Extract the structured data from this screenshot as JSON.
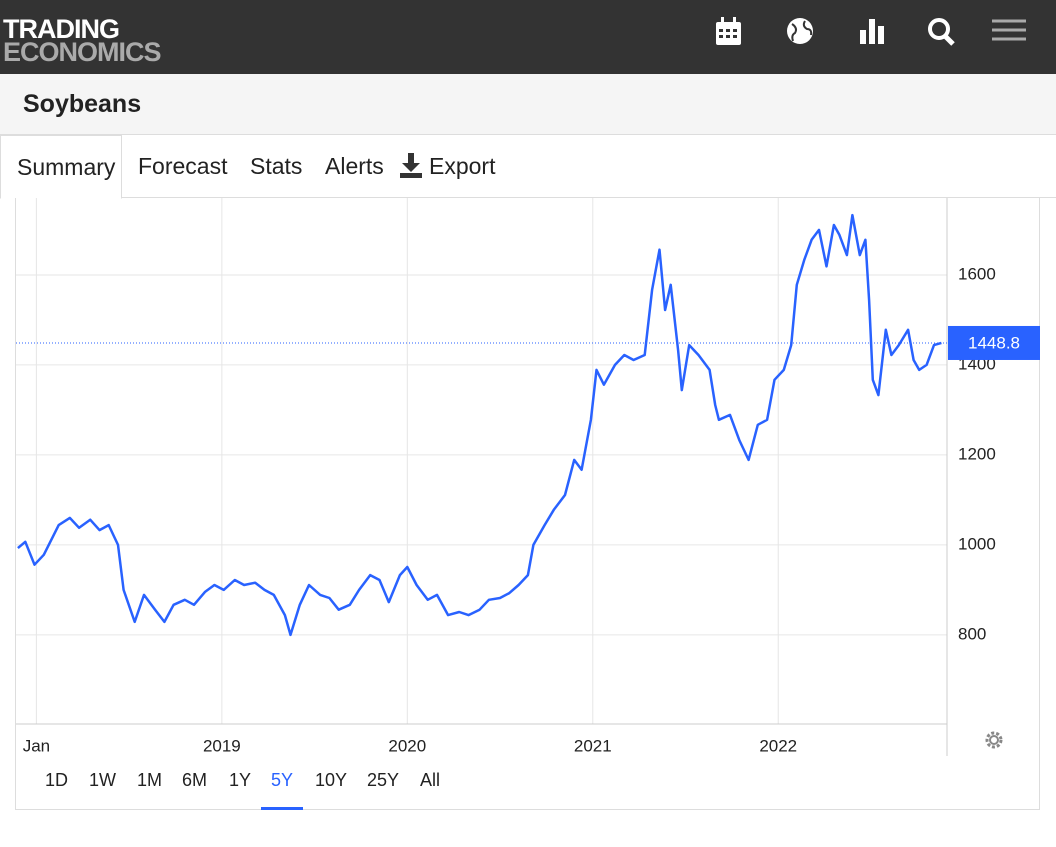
{
  "header": {
    "logo_line1": "TRADING",
    "logo_line2": "ECONOMICS"
  },
  "page_title": "Soybeans",
  "tabs": [
    "Summary",
    "Forecast",
    "Stats",
    "Alerts",
    "Export"
  ],
  "chart_data": {
    "type": "line",
    "color": "#2962ff",
    "grid": true,
    "x": [
      2017.9,
      2017.94,
      2017.99,
      2018.04,
      2018.12,
      2018.18,
      2018.23,
      2018.29,
      2018.34,
      2018.39,
      2018.44,
      2018.47,
      2018.53,
      2018.58,
      2018.64,
      2018.69,
      2018.74,
      2018.8,
      2018.85,
      2018.91,
      2018.96,
      2019.01,
      2019.07,
      2019.12,
      2019.18,
      2019.23,
      2019.28,
      2019.34,
      2019.37,
      2019.42,
      2019.47,
      2019.53,
      2019.58,
      2019.63,
      2019.69,
      2019.74,
      2019.8,
      2019.85,
      2019.9,
      2019.96,
      2020.0,
      2020.05,
      2020.11,
      2020.16,
      2020.22,
      2020.28,
      2020.33,
      2020.39,
      2020.44,
      2020.5,
      2020.55,
      2020.6,
      2020.65,
      2020.68,
      2020.74,
      2020.79,
      2020.85,
      2020.9,
      2020.94,
      2020.99,
      2021.02,
      2021.06,
      2021.12,
      2021.17,
      2021.22,
      2021.28,
      2021.32,
      2021.36,
      2021.39,
      2021.42,
      2021.46,
      2021.48,
      2021.52,
      2021.57,
      2021.63,
      2021.66,
      2021.68,
      2021.74,
      2021.79,
      2021.84,
      2021.89,
      2021.94,
      2021.98,
      2022.03,
      2022.07,
      2022.1,
      2022.14,
      2022.18,
      2022.22,
      2022.26,
      2022.3,
      2022.33,
      2022.37,
      2022.4,
      2022.44,
      2022.47,
      2022.49,
      2022.51,
      2022.54,
      2022.58,
      2022.61,
      2022.65,
      2022.7,
      2022.73,
      2022.76,
      2022.8,
      2022.84,
      2022.88
    ],
    "values": [
      993,
      1007,
      956,
      978,
      1044,
      1060,
      1038,
      1056,
      1033,
      1044,
      1000,
      900,
      829,
      889,
      856,
      829,
      867,
      878,
      867,
      896,
      911,
      900,
      922,
      911,
      916,
      900,
      889,
      844,
      800,
      867,
      911,
      889,
      882,
      856,
      867,
      900,
      933,
      922,
      873,
      933,
      951,
      911,
      878,
      889,
      844,
      851,
      844,
      856,
      878,
      882,
      893,
      911,
      933,
      1000,
      1044,
      1078,
      1111,
      1189,
      1167,
      1278,
      1389,
      1356,
      1400,
      1422,
      1411,
      1422,
      1567,
      1656,
      1522,
      1578,
      1433,
      1344,
      1444,
      1422,
      1389,
      1311,
      1278,
      1289,
      1233,
      1189,
      1267,
      1278,
      1367,
      1389,
      1444,
      1578,
      1633,
      1678,
      1700,
      1619,
      1711,
      1689,
      1644,
      1733,
      1644,
      1678,
      1544,
      1367,
      1333,
      1478,
      1422,
      1444,
      1478,
      1411,
      1389,
      1400,
      1444,
      1449
    ],
    "xlim": [
      2017.89,
      2022.91
    ],
    "xticks": [
      {
        "value": 2018,
        "label": "Jan"
      },
      2019,
      2020,
      2021,
      2022
    ],
    "ylim": [
      602,
      1771
    ],
    "yticks": [
      800,
      1000,
      1200,
      1400,
      1600
    ],
    "last_value": 1448.8
  },
  "ranges": [
    "1D",
    "1W",
    "1M",
    "6M",
    "1Y",
    "5Y",
    "10Y",
    "25Y",
    "All"
  ],
  "active_range": "5Y"
}
